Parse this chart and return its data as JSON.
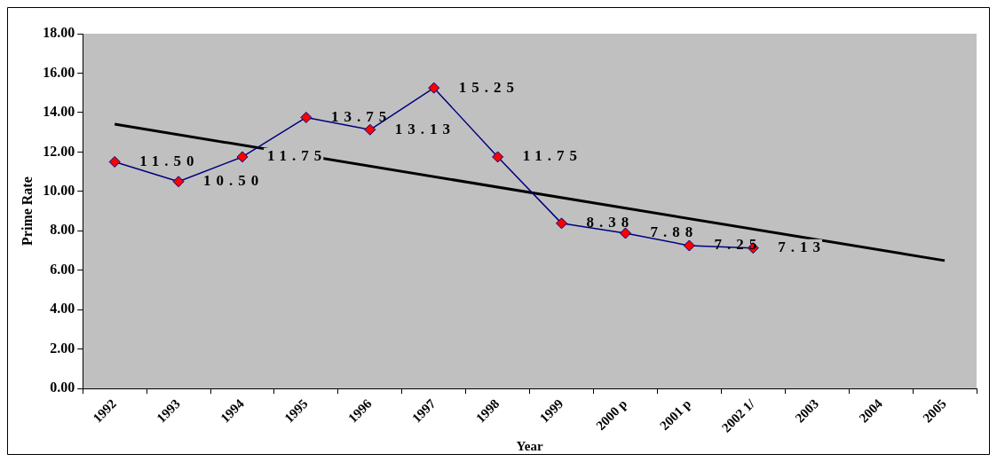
{
  "chart_data": {
    "type": "line",
    "xlabel": "Year",
    "ylabel": "Prime Rate",
    "categories": [
      "1992",
      "1993",
      "1994",
      "1995",
      "1996",
      "1997",
      "1998",
      "1999",
      "2000 p",
      "2001 p",
      "2002 1/",
      "2003",
      "2004",
      "2005"
    ],
    "series": [
      {
        "type": "line",
        "color": "#000080",
        "colors": [
          "#ff0000",
          "#ff0000",
          "#ff0000",
          "#ff0000",
          "#ff0000",
          "#ff0000",
          "#ff0000",
          "#ff0000",
          "#ff0000",
          "#ff0000",
          "#ff0000",
          "#ff0000",
          "#ff0000",
          "#ff0000"
        ],
        "marker": "diamond",
        "values": [
          11.5,
          10.5,
          11.75,
          13.75,
          13.13,
          15.25,
          11.75,
          8.38,
          7.88,
          7.25,
          7.13,
          null,
          null,
          null
        ],
        "value_labels": [
          "11.50",
          "10.50",
          "11.75",
          "13.75",
          "13.13",
          "15.25",
          "11.75",
          "8.38",
          "7.88",
          "7.25",
          "7.13",
          null,
          null,
          null
        ]
      },
      {
        "type": "line",
        "color": "#000000",
        "marker": "none",
        "values": [
          13.41,
          null,
          null,
          null,
          null,
          null,
          null,
          null,
          null,
          null,
          null,
          null,
          null,
          6.49
        ]
      }
    ],
    "ylim": [
      0,
      18
    ],
    "yticks": [
      {
        "value": 0,
        "label": "0.00"
      },
      {
        "value": 2,
        "label": "2.00"
      },
      {
        "value": 4,
        "label": "4.00"
      },
      {
        "value": 6,
        "label": "6.00"
      },
      {
        "value": 8,
        "label": "8.00"
      },
      {
        "value": 10,
        "label": "10.00"
      },
      {
        "value": 12,
        "label": "12.00"
      },
      {
        "value": 14,
        "label": "14.00"
      },
      {
        "value": 16,
        "label": "16.00"
      },
      {
        "value": 18,
        "label": "18.00"
      }
    ],
    "grid": false,
    "legend": false
  }
}
